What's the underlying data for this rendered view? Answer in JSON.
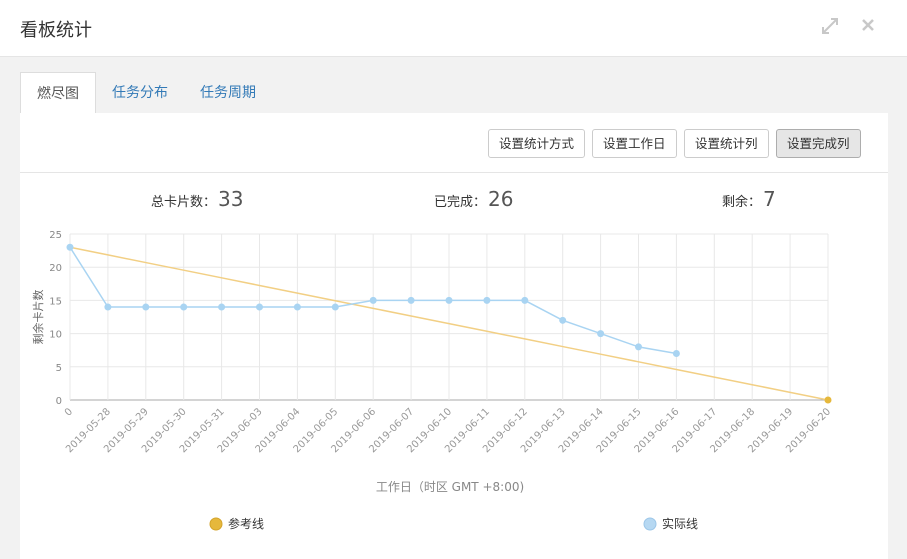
{
  "header": {
    "title": "看板统计"
  },
  "tabs": [
    "燃尽图",
    "任务分布",
    "任务周期"
  ],
  "buttons": [
    "设置统计方式",
    "设置工作日",
    "设置统计列",
    "设置完成列"
  ],
  "stats": [
    {
      "label": "总卡片数：",
      "value": 33
    },
    {
      "label": "已完成：",
      "value": 26
    },
    {
      "label": "剩余：",
      "value": 7
    }
  ],
  "chart_data": {
    "type": "line",
    "ylabel": "剩余卡片数",
    "xlabel": "工作日（时区 GMT +8:00)",
    "categories": [
      "0",
      "2019-05-28",
      "2019-05-29",
      "2019-05-30",
      "2019-05-31",
      "2019-06-03",
      "2019-06-04",
      "2019-06-05",
      "2019-06-06",
      "2019-06-07",
      "2019-06-10",
      "2019-06-11",
      "2019-06-12",
      "2019-06-13",
      "2019-06-14",
      "2019-06-15",
      "2019-06-16",
      "2019-06-17",
      "2019-06-18",
      "2019-06-19",
      "2019-06-20"
    ],
    "series": [
      {
        "name": "参考线",
        "color": "#f2cf84",
        "values": [
          23,
          21.85,
          20.7,
          19.55,
          18.4,
          17.25,
          16.1,
          14.95,
          13.8,
          12.65,
          11.5,
          10.35,
          9.2,
          8.05,
          6.9,
          5.75,
          4.6,
          3.45,
          2.3,
          1.15,
          0
        ]
      },
      {
        "name": "实际线",
        "color": "#a9d4f2",
        "values": [
          23,
          14,
          14,
          14,
          14,
          14,
          14,
          14,
          15,
          15,
          15,
          15,
          15,
          12,
          10,
          8,
          7,
          null,
          null,
          null,
          null
        ]
      }
    ],
    "ylim": [
      0,
      25
    ],
    "yticks": [
      0,
      5,
      10,
      15,
      20,
      25
    ],
    "grid": true
  }
}
